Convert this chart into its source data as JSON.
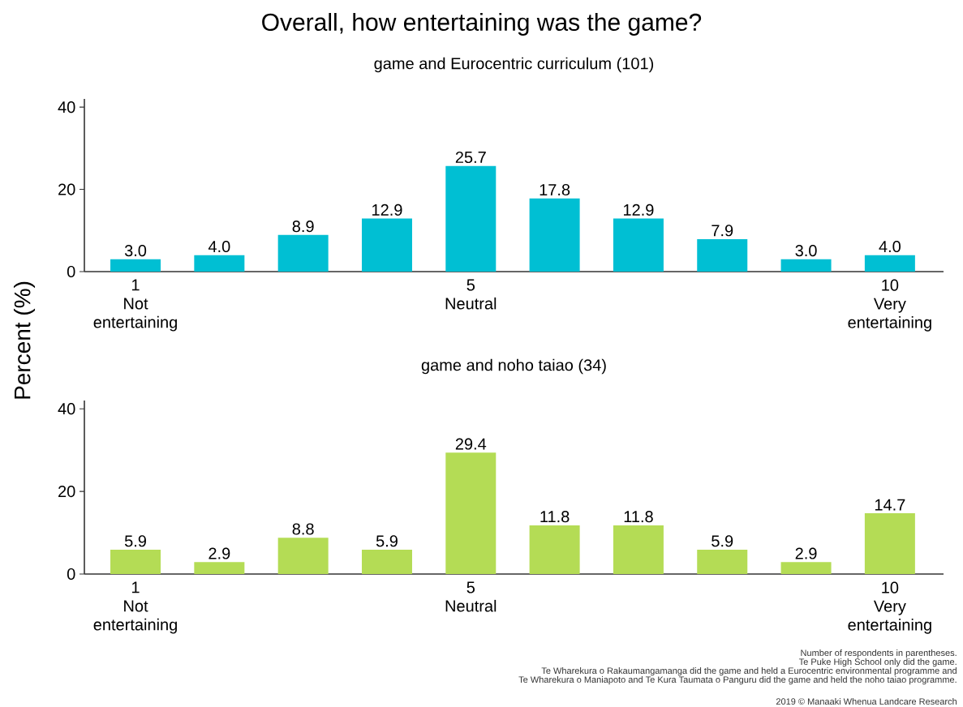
{
  "chart_data": [
    {
      "type": "bar",
      "title": "Overall, how entertaining was the game?",
      "subtitle": "game and Eurocentric curriculum (101)",
      "ylabel": "Percent (%)",
      "categories": [
        "1 Not entertaining",
        null,
        null,
        null,
        "5 Neutral",
        null,
        null,
        null,
        null,
        "10 Very entertaining"
      ],
      "values": [
        3.0,
        4.0,
        8.9,
        12.9,
        25.7,
        17.8,
        12.9,
        7.9,
        3.0,
        4.0
      ],
      "color": "#00bfd3",
      "value_labels": [
        "3.0",
        "4.0",
        "8.9",
        "12.9",
        "25.7",
        "17.8",
        "12.9",
        "7.9",
        "3.0",
        "4.0"
      ],
      "ylim": [
        0,
        42
      ],
      "yticks": [
        0,
        20,
        40
      ]
    },
    {
      "type": "bar",
      "subtitle": "game and noho taiao (34)",
      "categories": [
        "1 Not entertaining",
        null,
        null,
        null,
        "5 Neutral",
        null,
        null,
        null,
        null,
        "10 Very entertaining"
      ],
      "values": [
        5.9,
        2.9,
        8.8,
        5.9,
        29.4,
        11.8,
        11.8,
        5.9,
        2.9,
        14.7
      ],
      "color": "#b4dc55",
      "value_labels": [
        "5.9",
        "2.9",
        "8.8",
        "5.9",
        "29.4",
        "11.8",
        "11.8",
        "5.9",
        "2.9",
        "14.7"
      ],
      "ylim": [
        0,
        42
      ],
      "yticks": [
        0,
        20,
        40
      ],
      "annotations": [
        "Number of respondents in parentheses.",
        "Te Puke High School only did the game.",
        "Te Wharekura o Rakaumangamanga did the game and held a Eurocentric environmental programme and",
        "Te Wharekura o Maniapoto and Te Kura Taumata o Panguru did the game and held the noho taiao programme.",
        "2019 © Manaaki Whenua Landcare Research"
      ]
    }
  ]
}
